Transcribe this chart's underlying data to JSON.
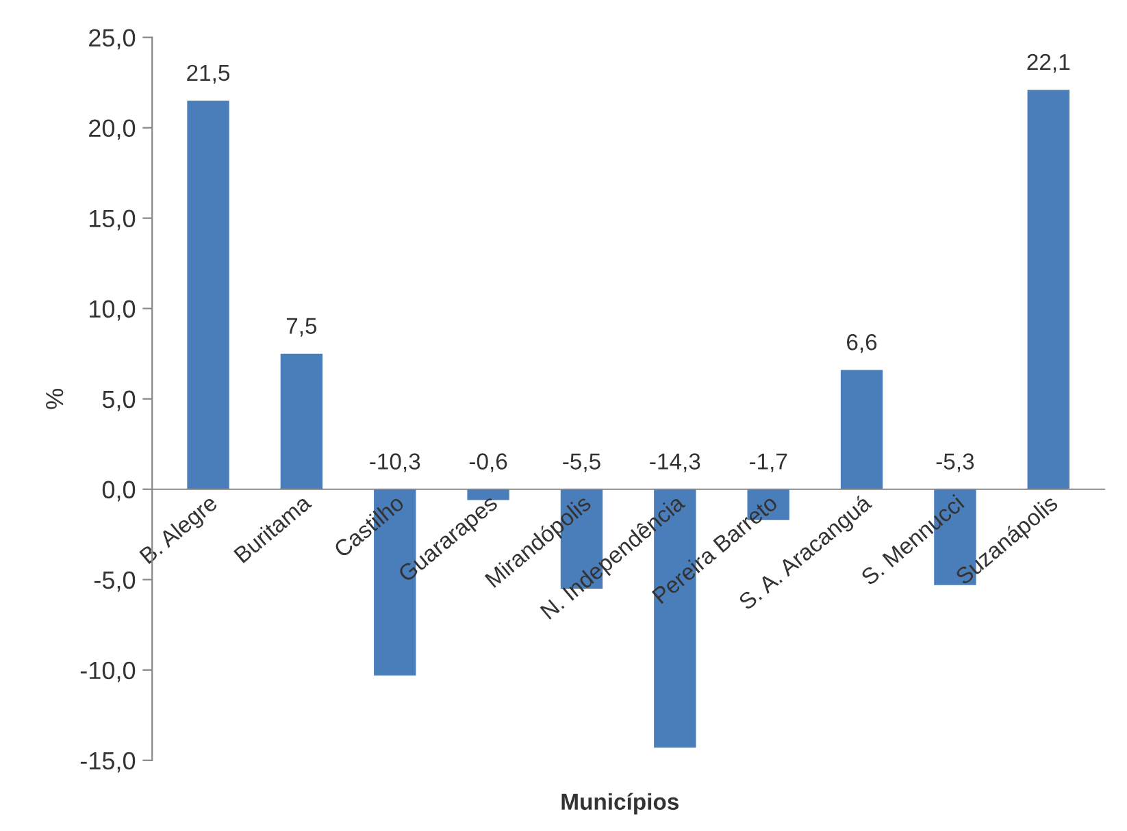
{
  "chart_data": {
    "type": "bar",
    "xlabel": "Municípios",
    "ylabel": "%",
    "categories": [
      "B. Alegre",
      "Buritama",
      "Castilho",
      "Guararapes",
      "Mirandópolis",
      "N. Independência",
      "Pereira Barreto",
      "S. A. Aracanguá",
      "S. Mennucci",
      "Suzanápolis"
    ],
    "values": [
      21.5,
      7.5,
      -10.3,
      -0.6,
      -5.5,
      -14.3,
      -1.7,
      6.6,
      -5.3,
      22.1
    ],
    "value_labels": [
      "21,5",
      "7,5",
      "-10,3",
      "-0,6",
      "-5,5",
      "-14,3",
      "-1,7",
      "6,6",
      "-5,3",
      "22,1"
    ],
    "color": "#4a7ebb",
    "ylim": [
      -15,
      25
    ],
    "yticks": [
      {
        "value": -15,
        "label": "-15,0"
      },
      {
        "value": -10,
        "label": "-10,0"
      },
      {
        "value": -5,
        "label": "-5,0"
      },
      {
        "value": 0,
        "label": "0,0"
      },
      {
        "value": 5,
        "label": "5,0"
      },
      {
        "value": 10,
        "label": "10,0"
      },
      {
        "value": 15,
        "label": "15,0"
      },
      {
        "value": 20,
        "label": "20,0"
      },
      {
        "value": 25,
        "label": "25,0"
      }
    ],
    "grid": false,
    "legend": false
  }
}
